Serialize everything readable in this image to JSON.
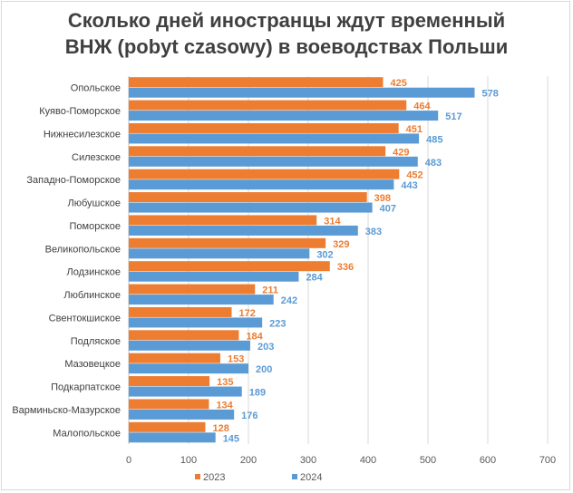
{
  "chart_data": {
    "type": "bar",
    "orientation": "horizontal",
    "title_lines": [
      "Сколько дней иностранцы ждут временный",
      "ВНЖ (pobyt czasowy) в воеводствах Польши"
    ],
    "categories": [
      "Опольское",
      "Куяво-Поморское",
      "Нижнесилезское",
      "Силезское",
      "Западно-Поморское",
      "Любушское",
      "Поморское",
      "Великопольское",
      "Лодзинское",
      "Люблинское",
      "Свентокшиское",
      "Подляское",
      "Мазовецкое",
      "Подкарпатское",
      "Варминьско-Мазурское",
      "Малопольское"
    ],
    "series": [
      {
        "name": "2023",
        "color": "#ED7D31",
        "values": [
          425,
          464,
          451,
          429,
          452,
          398,
          314,
          329,
          336,
          211,
          172,
          184,
          153,
          135,
          134,
          128
        ]
      },
      {
        "name": "2024",
        "color": "#5B9BD5",
        "values": [
          578,
          517,
          485,
          483,
          443,
          407,
          383,
          302,
          284,
          242,
          223,
          203,
          200,
          189,
          176,
          145
        ]
      }
    ],
    "xlim": [
      0,
      700
    ],
    "xticks": [
      "0",
      "100",
      "200",
      "300",
      "400",
      "500",
      "600",
      "700"
    ],
    "grid": true,
    "data_labels": true,
    "legend_position": "bottom"
  }
}
